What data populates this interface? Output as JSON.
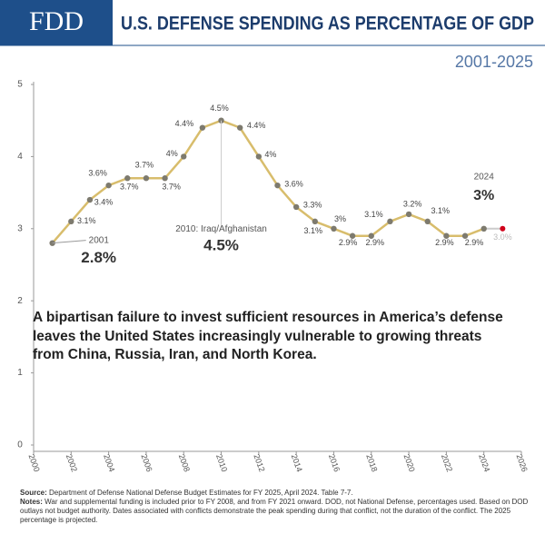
{
  "header": {
    "logo": "FDD",
    "title": "U.S. DEFENSE SPENDING AS PERCENTAGE OF GDP",
    "subtitle": "2001-2025"
  },
  "chart_data": {
    "type": "line",
    "x": [
      2001,
      2002,
      2003,
      2004,
      2005,
      2006,
      2007,
      2008,
      2009,
      2010,
      2011,
      2012,
      2013,
      2014,
      2015,
      2016,
      2017,
      2018,
      2019,
      2020,
      2021,
      2022,
      2023,
      2024,
      2025
    ],
    "series": [
      {
        "color": "#d8bd6c",
        "point_color": "#7d7a6e",
        "projected_color": "#d0021b",
        "values": [
          2.8,
          3.1,
          3.4,
          3.6,
          3.7,
          3.7,
          3.7,
          4.0,
          4.4,
          4.5,
          4.4,
          4.0,
          3.6,
          3.3,
          3.1,
          3.0,
          2.9,
          2.9,
          3.1,
          3.2,
          3.1,
          2.9,
          2.9,
          3.0,
          3.0
        ],
        "value_labels": [
          "2.8%",
          "3.1%",
          "3.4%",
          "3.6%",
          "3.7%",
          "3.7%",
          "3.7%",
          "4%",
          "4.4%",
          "4.5%",
          "4.4%",
          "4%",
          "3.6%",
          "3.3%",
          "3.1%",
          "3%",
          "2.9%",
          "2.9%",
          "3.1%",
          "3.2%",
          "3.1%",
          "2.9%",
          "2.9%",
          "3%",
          "3.0%"
        ],
        "projected": [
          false,
          false,
          false,
          false,
          false,
          false,
          false,
          false,
          false,
          false,
          false,
          false,
          false,
          false,
          false,
          false,
          false,
          false,
          false,
          false,
          false,
          false,
          false,
          false,
          true
        ]
      }
    ],
    "annotations": [
      {
        "text": "2001"
      },
      {
        "text": "2010: Iraq/Afghanistan",
        "value_label": "4.5%"
      },
      {
        "text": "2024"
      }
    ],
    "xlim": [
      2000,
      2026
    ],
    "xticks": [
      2000,
      2002,
      2004,
      2006,
      2008,
      2010,
      2012,
      2014,
      2016,
      2018,
      2020,
      2022,
      2024,
      2026
    ],
    "ylim": [
      0,
      5
    ],
    "yticks": [
      0,
      1,
      2,
      3,
      4,
      5
    ],
    "grid": false
  },
  "message": "A bipartisan failure to invest sufficient resources in America’s defense leaves the United States increasingly vulnerable to growing threats from China, Russia, Iran, and North Korea.",
  "footer": {
    "source_label": "Source:",
    "source": "Department of Defense National Defense Budget Estimates for FY 2025, April 2024. Table 7-7.",
    "notes_label": "Notes:",
    "notes": "War and supplemental funding is included prior to FY 2008, and from FY 2021 onward. DOD, not National Defense, percentages used. Based on DOD outlays not budget authority. Dates associated with conflicts demonstrate the peak spending during that conflict, not the duration of the conflict. The 2025 percentage is projected."
  }
}
